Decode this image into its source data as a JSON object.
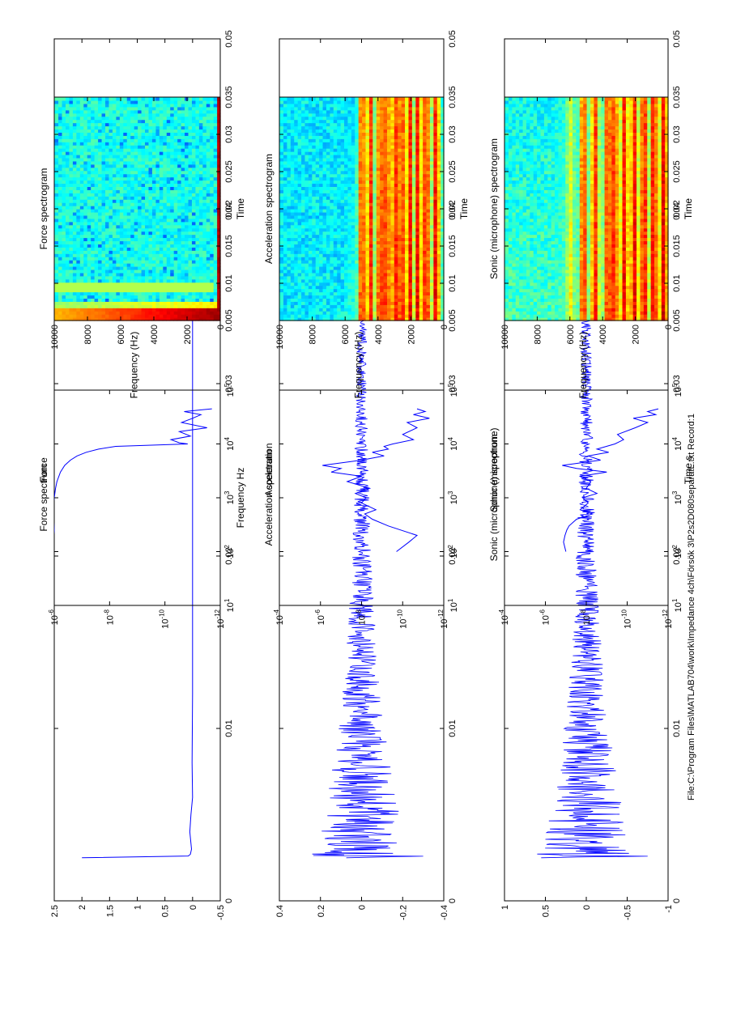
{
  "footer": "File:C:\\Program Files\\MATLAB704\\work\\Impedance 4ch\\Försök 3\\P2s2D080separatL.txt   Record:1",
  "colors": {
    "line": "#0000ff",
    "axis": "#000000"
  },
  "chart_data": [
    {
      "id": "force-time",
      "type": "line",
      "title": "Force",
      "xlabel": "",
      "ylabel": "",
      "xlim": [
        0,
        0.05
      ],
      "ylim": [
        -0.5,
        2.5
      ],
      "xticks": [
        "0",
        "0.01",
        "0.02",
        "0.03",
        "0.04",
        "0.05"
      ],
      "yticks": [
        "2.5",
        "2",
        "1.5",
        "1",
        "0.5",
        "0",
        "-0.5"
      ],
      "x": [
        0.0025,
        0.0026,
        0.0027,
        0.003,
        0.004,
        0.005,
        0.006,
        0.008,
        0.012,
        0.02,
        0.03,
        0.041
      ],
      "y": [
        2.0,
        0.08,
        0.04,
        0.02,
        0.05,
        0.03,
        0.0,
        0.01,
        0.0,
        0.0,
        0.0,
        0.0
      ]
    },
    {
      "id": "acceleration-time",
      "type": "line",
      "title": "Acceleration",
      "xlabel": "",
      "ylabel": "",
      "xlim": [
        0,
        0.05
      ],
      "ylim": [
        -0.4,
        0.4
      ],
      "xticks": [
        "0",
        "0.01",
        "0.02",
        "0.03",
        "0.04",
        "0.05"
      ],
      "yticks": [
        "0.4",
        "0.2",
        "0",
        "-0.2",
        "-0.4"
      ],
      "envelope": {
        "t_start": 0.0025,
        "t_end": 0.041,
        "peak": 0.24,
        "min_peak": -0.3,
        "tail": 0.015
      }
    },
    {
      "id": "sonic-time",
      "type": "line",
      "title": "Sonic (microphone)",
      "xlabel": "Time s",
      "ylabel": "",
      "xlim": [
        0,
        0.05
      ],
      "ylim": [
        -1,
        1
      ],
      "xticks": [
        "0",
        "0.01",
        "0.02",
        "0.03",
        "0.04",
        "0.05"
      ],
      "yticks": [
        "1",
        "0.5",
        "0",
        "-0.5",
        "-1"
      ],
      "envelope": {
        "t_start": 0.0025,
        "t_end": 0.041,
        "peak": 0.6,
        "min_peak": -0.75,
        "tail": 0.04
      }
    },
    {
      "id": "force-spectrum",
      "type": "line",
      "title": "Force spectrum",
      "xlabel": "Frequency Hz",
      "ylabel": "",
      "xscale": "log",
      "yscale": "log",
      "xlim": [
        10,
        100000
      ],
      "ylim": [
        1e-12,
        1e-06
      ],
      "xticks": [
        [
          "10",
          "1"
        ],
        [
          "10",
          "2"
        ],
        [
          "10",
          "3"
        ],
        [
          "10",
          "4"
        ],
        [
          "10",
          "5"
        ]
      ],
      "yticks": [
        [
          "10",
          "-6"
        ],
        [
          "10",
          "-8"
        ],
        [
          "10",
          "-10"
        ],
        [
          "10",
          "-12"
        ]
      ],
      "x": [
        100,
        150,
        250,
        400,
        700,
        1000,
        1500,
        2000,
        3000,
        4000,
        5000,
        6000,
        7000,
        8000,
        9000,
        10000,
        10500,
        12000,
        14000,
        17000,
        20000,
        25000,
        30000,
        35000,
        40000,
        45000
      ],
      "y": [
        1.2e-06,
        1.1e-06,
        1e-06,
        1.05e-06,
        1.1e-06,
        1e-06,
        9e-07,
        8e-07,
        6e-07,
        4.2e-07,
        2.6e-07,
        1.5e-07,
        7e-08,
        2.5e-08,
        6e-09,
        1.5e-11,
        3e-11,
        6e-11,
        1.2e-11,
        3e-11,
        3e-12,
        2.5e-11,
        1e-11,
        5e-12,
        2e-11,
        2e-12
      ]
    },
    {
      "id": "acceleration-spectrum",
      "type": "line",
      "title": "Acceleration spectrum",
      "xlabel": "",
      "ylabel": "",
      "xscale": "log",
      "yscale": "log",
      "xlim": [
        10,
        100000
      ],
      "ylim": [
        1e-12,
        0.0001
      ],
      "xticks": [
        [
          "10",
          "1"
        ],
        [
          "10",
          "2"
        ],
        [
          "10",
          "3"
        ],
        [
          "10",
          "4"
        ],
        [
          "10",
          "5"
        ]
      ],
      "yticks": [
        [
          "10",
          "-4"
        ],
        [
          "10",
          "-6"
        ],
        [
          "10",
          "-8"
        ],
        [
          "10",
          "-10"
        ],
        [
          "10",
          "-12"
        ]
      ],
      "x": [
        100,
        150,
        200,
        300,
        400,
        500,
        600,
        800,
        1000,
        1200,
        1500,
        2000,
        2500,
        3000,
        3500,
        4000,
        5000,
        6000,
        7000,
        8000,
        9000,
        10000,
        12000,
        15000,
        20000,
        25000,
        30000,
        35000,
        40000,
        45000
      ],
      "y": [
        2e-10,
        5e-11,
        2e-11,
        5e-10,
        3e-09,
        7e-09,
        2e-09,
        1e-08,
        6e-09,
        2e-08,
        4e-09,
        5e-08,
        1e-08,
        3e-07,
        1e-07,
        8e-07,
        1e-08,
        8e-10,
        3e-09,
        5e-10,
        8e-10,
        3e-10,
        3e-11,
        1e-10,
        2e-11,
        6e-11,
        5e-12,
        3e-11,
        8e-12,
        2e-11
      ]
    },
    {
      "id": "sonic-spectrum",
      "type": "line",
      "title": "Sonic (microphone) spectrum",
      "xlabel": "",
      "ylabel": "",
      "xscale": "log",
      "yscale": "log",
      "xlim": [
        10,
        100000
      ],
      "ylim": [
        1e-12,
        0.0001
      ],
      "xticks": [
        [
          "10",
          "1"
        ],
        [
          "10",
          "2"
        ],
        [
          "10",
          "3"
        ],
        [
          "10",
          "4"
        ],
        [
          "10",
          "5"
        ]
      ],
      "yticks": [
        [
          "10",
          "-4"
        ],
        [
          "10",
          "-6"
        ],
        [
          "10",
          "-8"
        ],
        [
          "10",
          "-10"
        ],
        [
          "10",
          "-12"
        ]
      ],
      "x": [
        100,
        150,
        200,
        250,
        300,
        400,
        500,
        600,
        800,
        1000,
        1200,
        1500,
        2000,
        2500,
        3000,
        3500,
        4000,
        5000,
        6000,
        7000,
        8000,
        10000,
        12000,
        15000,
        20000,
        25000,
        30000,
        35000,
        40000,
        45000
      ],
      "y": [
        1e-07,
        1.3e-07,
        1.1e-07,
        9e-08,
        7e-08,
        3e-08,
        5e-09,
        2e-08,
        8e-09,
        1.5e-08,
        3e-09,
        1e-08,
        6e-09,
        2e-08,
        1e-09,
        3e-08,
        1.5e-07,
        2e-09,
        8e-09,
        8e-10,
        3e-09,
        4e-10,
        1.5e-10,
        3e-10,
        4e-11,
        1e-11,
        5e-11,
        4e-12,
        1e-11,
        3e-12
      ]
    },
    {
      "id": "force-spectrogram",
      "type": "heatmap",
      "title": "Force spectrogram",
      "xlabel": "Time",
      "ylabel": "Frequency (Hz)",
      "xlim": [
        0.005,
        0.035
      ],
      "ylim": [
        0,
        10000
      ],
      "xticks": [
        "0.005",
        "0.01",
        "0.015",
        "0.02",
        "0.025",
        "0.03",
        "0.035"
      ],
      "yticks": [
        "10000",
        "8000",
        "6000",
        "4000",
        "2000",
        "0"
      ],
      "colormap": "jet",
      "mode": "force"
    },
    {
      "id": "acceleration-spectrogram",
      "type": "heatmap",
      "title": "Acceleration spectrogram",
      "xlabel": "Time",
      "ylabel": "Frequency (Hz)",
      "xlim": [
        0.005,
        0.035
      ],
      "ylim": [
        0,
        10000
      ],
      "xticks": [
        "0.005",
        "0.01",
        "0.015",
        "0.02",
        "0.025",
        "0.03",
        "0.035"
      ],
      "yticks": [
        "10000",
        "8000",
        "6000",
        "4000",
        "2000",
        "0"
      ],
      "colormap": "jet",
      "mode": "acceleration",
      "bands_hz": [
        500,
        1100,
        1600,
        2100,
        2600,
        3000,
        3500,
        3900,
        4500,
        5000
      ]
    },
    {
      "id": "sonic-spectrogram",
      "type": "heatmap",
      "title": "Sonic (microphone) spectrogram",
      "xlabel": "Time",
      "ylabel": "Frequency (Hz)",
      "xlim": [
        0.005,
        0.035
      ],
      "ylim": [
        0,
        10000
      ],
      "xticks": [
        "0.005",
        "0.01",
        "0.015",
        "0.02",
        "0.025",
        "0.03",
        "0.035"
      ],
      "yticks": [
        "10000",
        "8000",
        "6000",
        "4000",
        "2000",
        "0"
      ],
      "colormap": "jet",
      "mode": "sonic",
      "bands_hz": [
        300,
        900,
        1500,
        2100,
        2700,
        3300,
        3700,
        4500,
        5200,
        6000
      ]
    }
  ]
}
